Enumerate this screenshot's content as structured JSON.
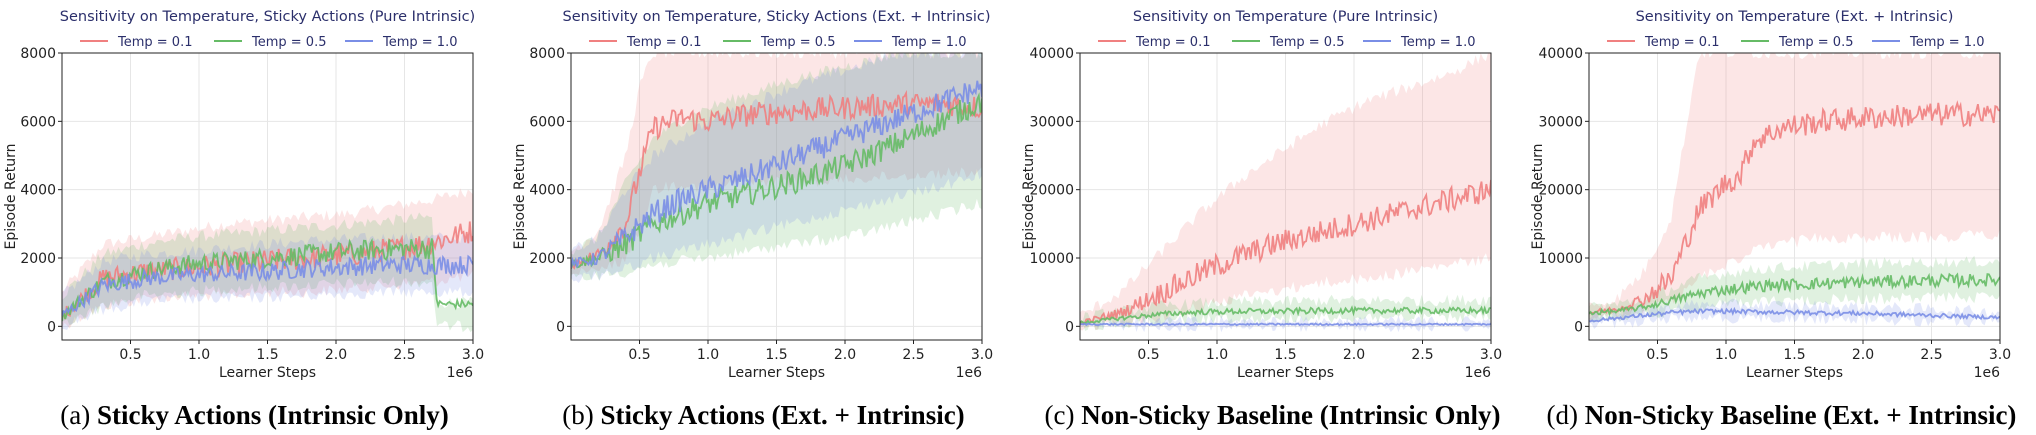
{
  "chart_data": [
    {
      "type": "line",
      "title": "Sensitivity on Temperature, Sticky Actions (Pure Intrinsic)",
      "xlabel": "Learner Steps",
      "ylabel": "Episode Return",
      "x_multiplier": "1e6",
      "xlim": [
        0,
        3000000
      ],
      "ylim": [
        -400,
        8000
      ],
      "xticks": [
        500000,
        1000000,
        1500000,
        2000000,
        2500000,
        3000000
      ],
      "xtick_labels": [
        "0.5",
        "1.0",
        "1.5",
        "2.0",
        "2.5",
        "3.0"
      ],
      "yticks": [
        0,
        2000,
        4000,
        6000,
        8000
      ],
      "ytick_labels": [
        "0",
        "2000",
        "4000",
        "6000",
        "8000"
      ],
      "grid": true,
      "legend_position": "top",
      "caption_label": "(a)",
      "caption_text": "Sticky Actions (Intrinsic Only)",
      "series": [
        {
          "name": "Temp = 0.1",
          "color": "#f08080",
          "x": [
            0,
            300000,
            600000,
            900000,
            1200000,
            1500000,
            1800000,
            2100000,
            2400000,
            2700000,
            3000000
          ],
          "y": [
            300,
            1400,
            1600,
            1700,
            1800,
            1900,
            2000,
            2100,
            2250,
            2450,
            2800
          ],
          "low": [
            0,
            600,
            800,
            900,
            900,
            1000,
            1000,
            1100,
            1200,
            1300,
            1500
          ],
          "high": [
            1000,
            2400,
            2600,
            2800,
            3000,
            3100,
            3200,
            3300,
            3500,
            3700,
            4000
          ]
        },
        {
          "name": "Temp = 0.5",
          "color": "#66bb66",
          "x": [
            0,
            300000,
            600000,
            900000,
            1200000,
            1500000,
            1800000,
            2100000,
            2400000,
            2700000,
            2740000,
            3000000
          ],
          "y": [
            300,
            1300,
            1600,
            1800,
            1900,
            2000,
            2100,
            2200,
            2250,
            2300,
            650,
            650
          ],
          "low": [
            0,
            600,
            900,
            1000,
            1100,
            1150,
            1200,
            1250,
            1300,
            1300,
            0,
            0
          ],
          "high": [
            900,
            2100,
            2400,
            2600,
            2700,
            2800,
            2900,
            3000,
            3100,
            3200,
            700,
            700
          ]
        },
        {
          "name": "Temp = 1.0",
          "color": "#7a8ee6",
          "x": [
            0,
            300000,
            600000,
            900000,
            1200000,
            1500000,
            1800000,
            2100000,
            2400000,
            2700000,
            3000000
          ],
          "y": [
            300,
            1200,
            1400,
            1500,
            1550,
            1600,
            1700,
            1750,
            1800,
            1800,
            1800
          ],
          "low": [
            0,
            500,
            700,
            800,
            800,
            850,
            900,
            950,
            1000,
            1000,
            1000
          ],
          "high": [
            900,
            1900,
            2100,
            2200,
            2300,
            2400,
            2500,
            2550,
            2600,
            2600,
            2600
          ]
        }
      ]
    },
    {
      "type": "line",
      "title": "Sensitivity on Temperature, Sticky Actions (Ext. + Intrinsic)",
      "xlabel": "Learner Steps",
      "ylabel": "Episode Return",
      "x_multiplier": "1e6",
      "xlim": [
        0,
        3000000
      ],
      "ylim": [
        -400,
        8000
      ],
      "xticks": [
        500000,
        1000000,
        1500000,
        2000000,
        2500000,
        3000000
      ],
      "xtick_labels": [
        "0.5",
        "1.0",
        "1.5",
        "2.0",
        "2.5",
        "3.0"
      ],
      "yticks": [
        0,
        2000,
        4000,
        6000,
        8000
      ],
      "ytick_labels": [
        "0",
        "2000",
        "4000",
        "6000",
        "8000"
      ],
      "grid": true,
      "legend_position": "top",
      "caption_label": "(b)",
      "caption_text": "Sticky Actions (Ext. + Intrinsic)",
      "series": [
        {
          "name": "Temp = 0.1",
          "color": "#f08080",
          "x": [
            0,
            200000,
            400000,
            500000,
            600000,
            800000,
            1000000,
            1300000,
            1600000,
            2000000,
            2400000,
            2800000,
            3000000
          ],
          "y": [
            1800,
            2100,
            3000,
            4500,
            5800,
            6100,
            6000,
            6200,
            6300,
            6400,
            6500,
            6500,
            6400
          ],
          "low": [
            1500,
            1600,
            2000,
            2800,
            4000,
            4200,
            4000,
            4300,
            4200,
            4300,
            4400,
            4500,
            4500
          ],
          "high": [
            2200,
            2800,
            5000,
            7000,
            8000,
            8000,
            8000,
            8000,
            8000,
            8000,
            8000,
            8000,
            8000
          ]
        },
        {
          "name": "Temp = 0.5",
          "color": "#66bb66",
          "x": [
            0,
            200000,
            400000,
            600000,
            800000,
            1000000,
            1300000,
            1600000,
            2000000,
            2400000,
            2800000,
            3000000
          ],
          "y": [
            1800,
            2000,
            2400,
            3000,
            3300,
            3600,
            3900,
            4200,
            4700,
            5400,
            6200,
            6600
          ],
          "low": [
            1400,
            1500,
            1600,
            1800,
            1900,
            2000,
            2200,
            2400,
            2600,
            3000,
            3400,
            3600
          ],
          "high": [
            2200,
            2600,
            4200,
            5500,
            6000,
            6400,
            6800,
            7200,
            7600,
            8000,
            8000,
            8000
          ]
        },
        {
          "name": "Temp = 1.0",
          "color": "#7a8ee6",
          "x": [
            0,
            200000,
            400000,
            600000,
            800000,
            1000000,
            1300000,
            1600000,
            2000000,
            2400000,
            2800000,
            3000000
          ],
          "y": [
            1800,
            2000,
            2600,
            3300,
            3700,
            4000,
            4400,
            4900,
            5500,
            6100,
            6700,
            7000
          ],
          "low": [
            1400,
            1500,
            1700,
            2000,
            2200,
            2400,
            2700,
            3000,
            3400,
            3800,
            4200,
            4500
          ],
          "high": [
            2200,
            2600,
            4000,
            5000,
            5500,
            6000,
            6500,
            7000,
            7500,
            8000,
            8000,
            8000
          ]
        }
      ]
    },
    {
      "type": "line",
      "title": "Sensitivity on Temperature (Pure Intrinsic)",
      "xlabel": "Learner Steps",
      "ylabel": "Episode Return",
      "x_multiplier": "1e6",
      "xlim": [
        0,
        3000000
      ],
      "ylim": [
        -2000,
        40000
      ],
      "xticks": [
        500000,
        1000000,
        1500000,
        2000000,
        2500000,
        3000000
      ],
      "xtick_labels": [
        "0.5",
        "1.0",
        "1.5",
        "2.0",
        "2.5",
        "3.0"
      ],
      "yticks": [
        0,
        10000,
        20000,
        30000,
        40000
      ],
      "ytick_labels": [
        "0",
        "10000",
        "20000",
        "30000",
        "40000"
      ],
      "grid": true,
      "legend_position": "top",
      "caption_label": "(c)",
      "caption_text": "Non-Sticky Baseline (Intrinsic Only)",
      "series": [
        {
          "name": "Temp = 0.1",
          "color": "#f08080",
          "x": [
            0,
            300000,
            600000,
            900000,
            1200000,
            1500000,
            1800000,
            2100000,
            2400000,
            2700000,
            3000000
          ],
          "y": [
            500,
            2000,
            5000,
            8000,
            10500,
            12500,
            14000,
            15500,
            17000,
            18500,
            20000
          ],
          "low": [
            0,
            500,
            1500,
            3000,
            4500,
            5500,
            6500,
            7000,
            8000,
            9000,
            10000
          ],
          "high": [
            1500,
            5000,
            11000,
            17000,
            22000,
            26000,
            30000,
            33000,
            35000,
            37000,
            40000
          ]
        },
        {
          "name": "Temp = 0.5",
          "color": "#66bb66",
          "x": [
            0,
            300000,
            600000,
            900000,
            1200000,
            1500000,
            1800000,
            2100000,
            2400000,
            2700000,
            3000000
          ],
          "y": [
            500,
            1200,
            1800,
            2100,
            2200,
            2200,
            2300,
            2300,
            2300,
            2300,
            2300
          ],
          "low": [
            0,
            500,
            900,
            1100,
            1200,
            1200,
            1300,
            1300,
            1300,
            1300,
            1300
          ],
          "high": [
            1200,
            2200,
            3000,
            3400,
            3600,
            3600,
            3800,
            3800,
            3800,
            3800,
            4000
          ]
        },
        {
          "name": "Temp = 1.0",
          "color": "#7a8ee6",
          "x": [
            0,
            300000,
            600000,
            900000,
            1200000,
            1500000,
            1800000,
            2100000,
            2400000,
            2700000,
            3000000
          ],
          "y": [
            300,
            300,
            300,
            300,
            300,
            300,
            300,
            300,
            300,
            300,
            300
          ],
          "low": [
            0,
            0,
            0,
            0,
            0,
            0,
            0,
            0,
            0,
            0,
            0
          ],
          "high": [
            700,
            700,
            700,
            700,
            700,
            700,
            700,
            700,
            700,
            700,
            700
          ]
        }
      ]
    },
    {
      "type": "line",
      "title": "Sensitivity on Temperature (Ext. + Intrinsic)",
      "xlabel": "Learner Steps",
      "ylabel": "Episode Return",
      "x_multiplier": "1e6",
      "xlim": [
        0,
        3000000
      ],
      "ylim": [
        -2000,
        40000
      ],
      "xticks": [
        500000,
        1000000,
        1500000,
        2000000,
        2500000,
        3000000
      ],
      "xtick_labels": [
        "0.5",
        "1.0",
        "1.5",
        "2.0",
        "2.5",
        "3.0"
      ],
      "yticks": [
        0,
        10000,
        20000,
        30000,
        40000
      ],
      "ytick_labels": [
        "0",
        "10000",
        "20000",
        "30000",
        "40000"
      ],
      "grid": true,
      "legend_position": "top",
      "caption_label": "(d)",
      "caption_text": "Non-Sticky Baseline (Ext. + Intrinsic)",
      "series": [
        {
          "name": "Temp = 0.1",
          "color": "#f08080",
          "x": [
            0,
            200000,
            400000,
            600000,
            700000,
            800000,
            1000000,
            1100000,
            1200000,
            1400000,
            1700000,
            2000000,
            2500000,
            3000000
          ],
          "y": [
            2000,
            2500,
            4000,
            7000,
            12000,
            17000,
            21000,
            22000,
            27000,
            29000,
            30000,
            30500,
            31000,
            31000
          ],
          "low": [
            1000,
            1500,
            2500,
            3500,
            5000,
            7000,
            9000,
            10000,
            11000,
            12000,
            13000,
            13000,
            13000,
            13500
          ],
          "high": [
            3000,
            4000,
            8000,
            16000,
            28000,
            40000,
            40000,
            40000,
            40000,
            40000,
            40000,
            40000,
            40000,
            40000
          ]
        },
        {
          "name": "Temp = 0.5",
          "color": "#66bb66",
          "x": [
            0,
            200000,
            400000,
            600000,
            800000,
            1000000,
            1300000,
            1600000,
            2000000,
            2500000,
            3000000
          ],
          "y": [
            2000,
            2200,
            2800,
            3800,
            4800,
            5400,
            6000,
            6200,
            6500,
            6700,
            6800
          ],
          "low": [
            1000,
            1200,
            1600,
            2200,
            2800,
            3200,
            3600,
            3800,
            4000,
            4200,
            4300
          ],
          "high": [
            3000,
            3200,
            4000,
            5500,
            7000,
            7800,
            8500,
            8800,
            9200,
            9400,
            9500
          ]
        },
        {
          "name": "Temp = 1.0",
          "color": "#7a8ee6",
          "x": [
            0,
            200000,
            400000,
            600000,
            800000,
            1000000,
            1300000,
            1600000,
            2000000,
            2500000,
            3000000
          ],
          "y": [
            800,
            1200,
            1600,
            2000,
            2200,
            2200,
            2100,
            2000,
            1900,
            1600,
            1300
          ],
          "low": [
            200,
            500,
            800,
            1100,
            1300,
            1300,
            1200,
            1100,
            1000,
            800,
            600
          ],
          "high": [
            1500,
            2000,
            2500,
            3000,
            3200,
            3200,
            3100,
            3000,
            2900,
            2500,
            2100
          ]
        }
      ]
    }
  ]
}
